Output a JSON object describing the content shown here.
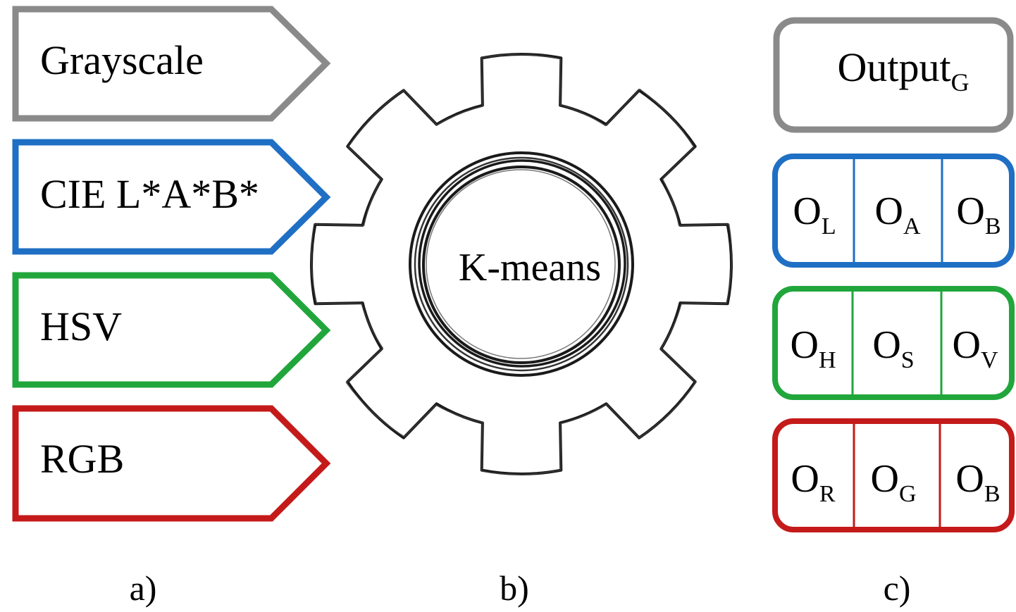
{
  "inputs": [
    {
      "label": "Grayscale",
      "color": "#8a8a8a"
    },
    {
      "label": "CIE L*A*B*",
      "color": "#1f6fc4"
    },
    {
      "label": "HSV",
      "color": "#21a63c"
    },
    {
      "label": "RGB",
      "color": "#c41a1a"
    }
  ],
  "engine": {
    "label": "K-means",
    "icon": "gear-icon"
  },
  "outputs": [
    {
      "color": "#8a8a8a",
      "cells": [
        {
          "base": "Output",
          "sub": "G"
        }
      ]
    },
    {
      "color": "#1f6fc4",
      "cells": [
        {
          "base": "O",
          "sub": "L"
        },
        {
          "base": "O",
          "sub": "A"
        },
        {
          "base": "O",
          "sub": "B"
        }
      ]
    },
    {
      "color": "#21a63c",
      "cells": [
        {
          "base": "O",
          "sub": "H"
        },
        {
          "base": "O",
          "sub": "S"
        },
        {
          "base": "O",
          "sub": "V"
        }
      ]
    },
    {
      "color": "#c41a1a",
      "cells": [
        {
          "base": "O",
          "sub": "R"
        },
        {
          "base": "O",
          "sub": "G"
        },
        {
          "base": "O",
          "sub": "B"
        }
      ]
    }
  ],
  "panel_labels": [
    "a)",
    "b)",
    "c)"
  ]
}
